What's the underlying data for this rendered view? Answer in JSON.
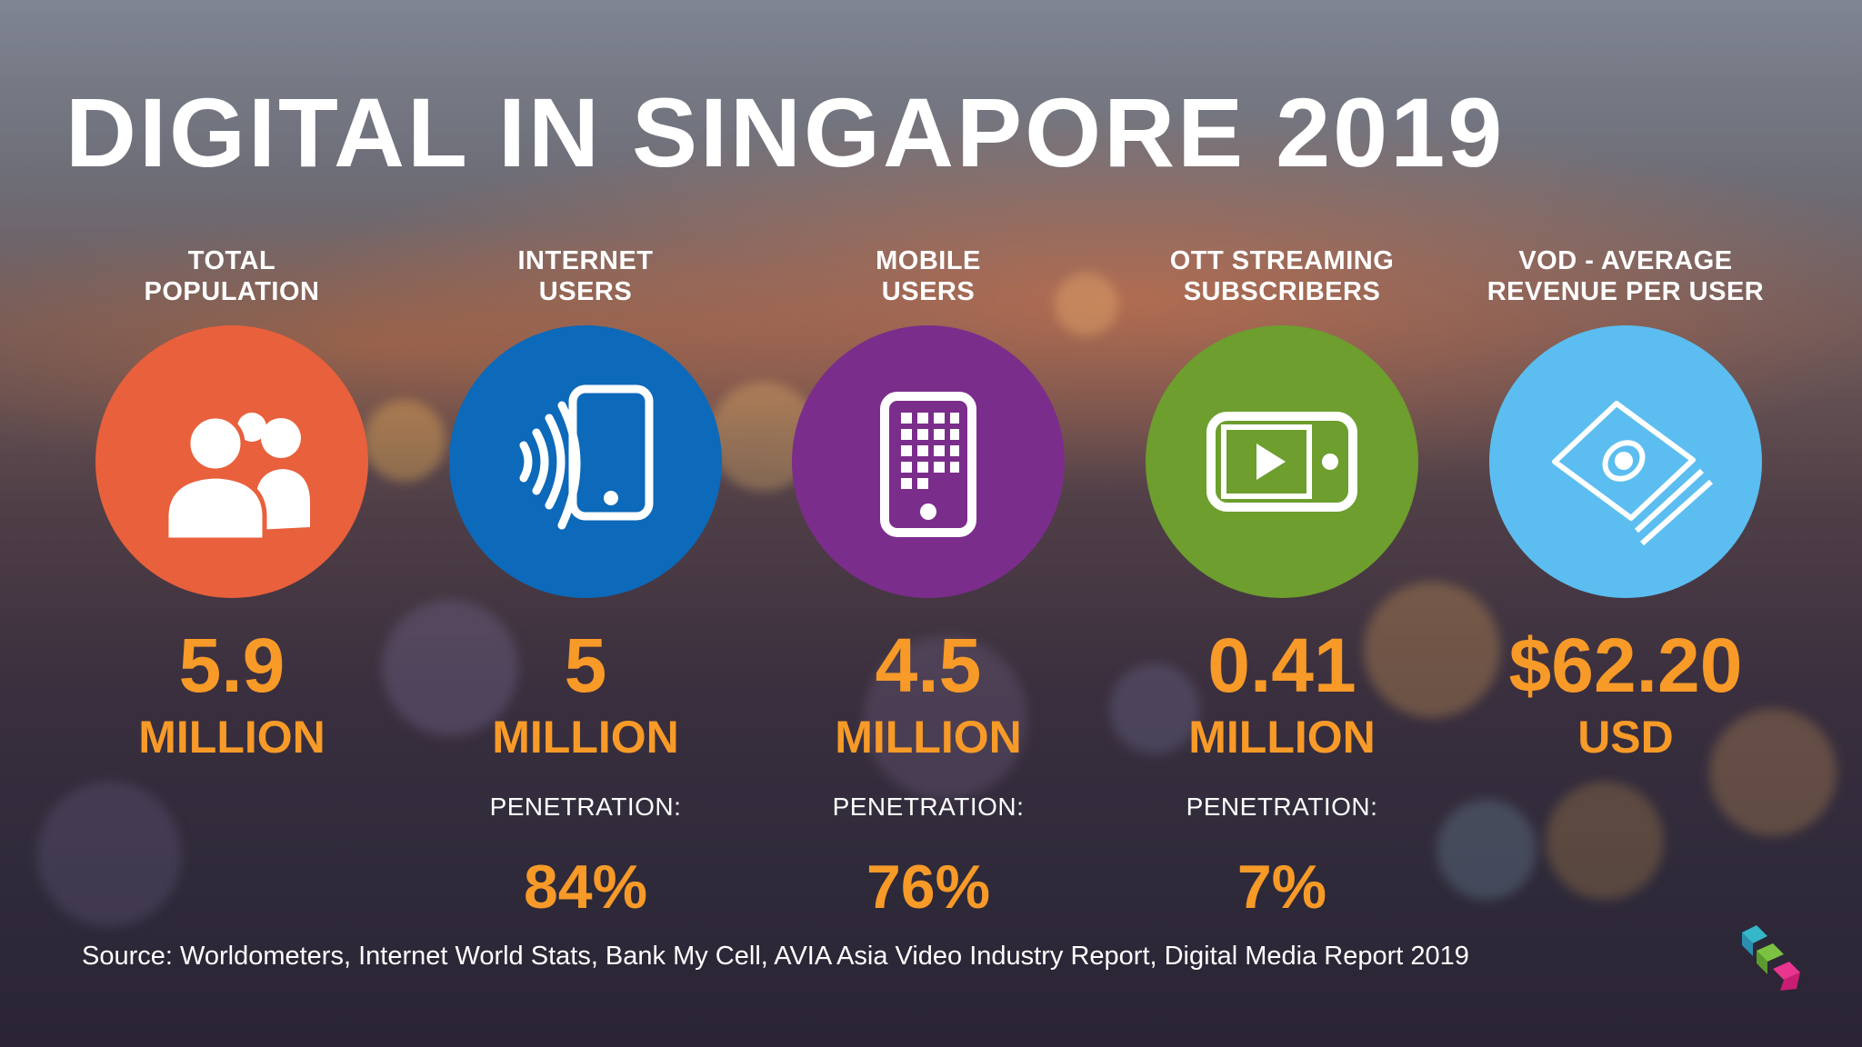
{
  "title": "DIGITAL IN SINGAPORE 2019",
  "stats": [
    {
      "label_line1": "TOTAL",
      "label_line2": "POPULATION",
      "value": "5.9",
      "unit": "MILLION",
      "penetration_label": "",
      "penetration_value": "",
      "icon": "people-icon",
      "color": "#e8603c"
    },
    {
      "label_line1": "INTERNET",
      "label_line2": "USERS",
      "value": "5",
      "unit": "MILLION",
      "penetration_label": "PENETRATION:",
      "penetration_value": "84%",
      "icon": "wireless-phone-icon",
      "color": "#0d69b9"
    },
    {
      "label_line1": "MOBILE",
      "label_line2": "USERS",
      "value": "4.5",
      "unit": "MILLION",
      "penetration_label": "PENETRATION:",
      "penetration_value": "76%",
      "icon": "mobile-phone-icon",
      "color": "#7b2d8b"
    },
    {
      "label_line1": "OTT STREAMING",
      "label_line2": "SUBSCRIBERS",
      "value": "0.41",
      "unit": "MILLION",
      "penetration_label": "PENETRATION:",
      "penetration_value": "7%",
      "icon": "video-player-icon",
      "color": "#6d9e2e"
    },
    {
      "label_line1": "VOD - AVERAGE",
      "label_line2": "REVENUE PER USER",
      "value": "$62.20",
      "unit": "USD",
      "penetration_label": "",
      "penetration_value": "",
      "icon": "money-stack-icon",
      "color": "#5cbdf0"
    }
  ],
  "source": "Source: Worldometers, Internet World Stats, Bank My Cell, AVIA Asia Video Industry Report, Digital Media Report 2019",
  "colors": {
    "value_orange": "#f79a28",
    "text_white": "#ffffff"
  },
  "logo_icon": "cube-logo-icon"
}
